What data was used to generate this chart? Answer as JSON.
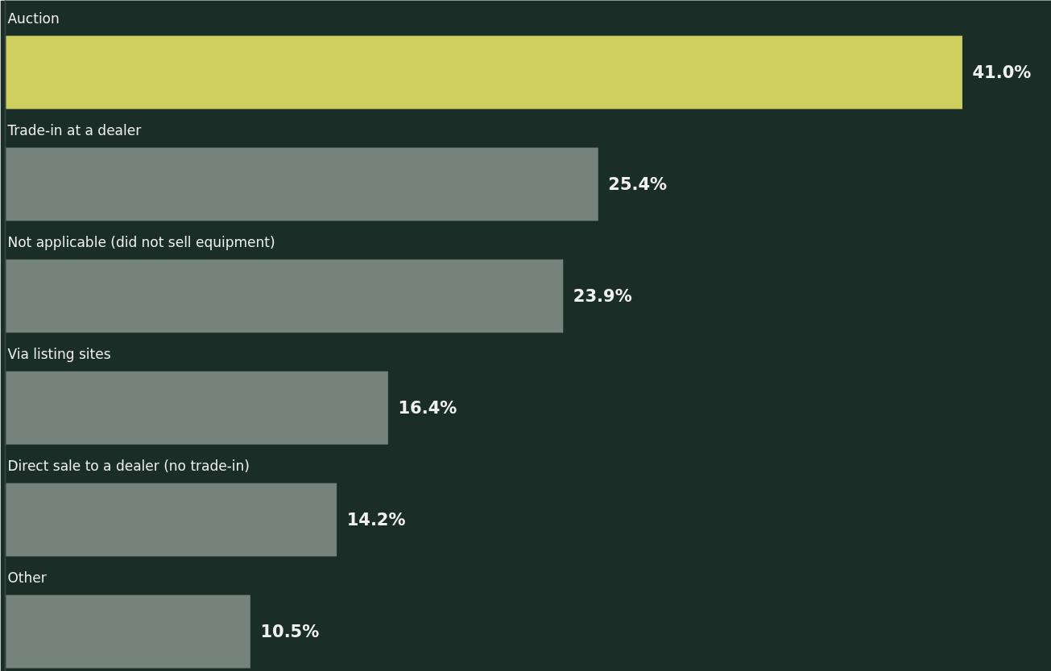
{
  "chart_data": {
    "type": "bar",
    "orientation": "horizontal",
    "relative": false,
    "categories": [
      "Auction",
      "Trade-in at a dealer",
      "Not applicable (did not sell equipment)",
      "Via listing sites",
      "Direct sale to a dealer (no trade-in)",
      "Other"
    ],
    "values": [
      41.0,
      25.4,
      23.9,
      16.4,
      14.2,
      10.5
    ],
    "colors": [
      "#cfcf60",
      "#76827c",
      "#76827c",
      "#76827c",
      "#76827c",
      "#76827c"
    ],
    "value_labels": [
      "41.0%",
      "25.4%",
      "23.9%",
      "16.4%",
      "14.2%",
      "10.5%"
    ]
  }
}
